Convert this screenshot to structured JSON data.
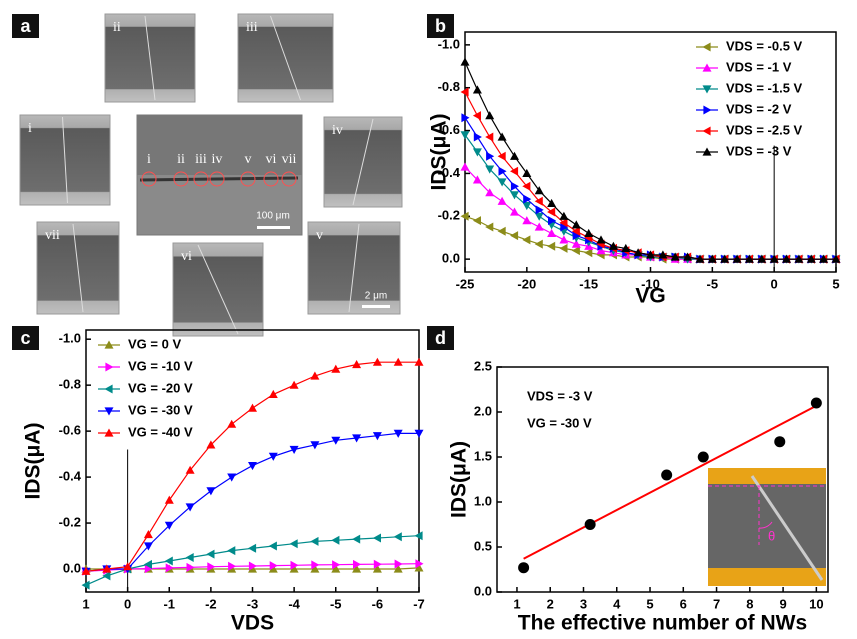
{
  "panel_a": {
    "label": "a",
    "images": [
      {
        "label": "ii"
      },
      {
        "label": "iii"
      },
      {
        "label": "i"
      },
      {
        "label": "iv"
      },
      {
        "label": "vii"
      },
      {
        "label": "vi"
      },
      {
        "label": "v"
      }
    ],
    "center_labels": [
      "i",
      "ii",
      "iii",
      "iv",
      "v",
      "vi",
      "vii"
    ],
    "center_scale": "100 μm",
    "image_scale": "2 μm"
  },
  "chart_data": [
    {
      "type": "line",
      "panel": "b",
      "xlabel": "VG",
      "ylabel": "IDS(μA)",
      "legend": "upper right",
      "x": [
        -25,
        -24,
        -23,
        -22,
        -21,
        -20,
        -19,
        -18,
        -17,
        -16,
        -15,
        -14,
        -13,
        -12,
        -11,
        -10,
        -9,
        -8,
        -7,
        -6,
        -5,
        -4,
        -3,
        -2,
        -1,
        0,
        1,
        2,
        3,
        4,
        5
      ],
      "xlim": [
        -25,
        5
      ],
      "xticks": [
        -25,
        -20,
        -15,
        -10,
        -5,
        0,
        5
      ],
      "ylim": [
        0.06,
        -1.06
      ],
      "yticks": [
        {
          "value": -1.0,
          "label": "-1.0"
        },
        -0.8,
        -0.6,
        -0.4,
        -0.2,
        {
          "value": 0,
          "label": "0.0"
        }
      ],
      "series": [
        {
          "name": "VDS = -0.5 V",
          "color": "#8c8c1a",
          "marker": "left",
          "values": [
            -0.2,
            -0.18,
            -0.15,
            -0.13,
            -0.11,
            -0.09,
            -0.07,
            -0.06,
            -0.05,
            -0.04,
            -0.03,
            -0.02,
            -0.02,
            -0.01,
            -0.01,
            -0.01,
            0,
            0,
            0,
            0,
            0,
            0,
            0,
            0,
            0,
            0,
            0,
            0,
            0,
            0,
            0
          ]
        },
        {
          "name": "VDS = -1 V",
          "color": "#ff00ff",
          "marker": "up",
          "values": [
            -0.43,
            -0.37,
            -0.31,
            -0.27,
            -0.22,
            -0.18,
            -0.15,
            -0.12,
            -0.09,
            -0.07,
            -0.06,
            -0.04,
            -0.03,
            -0.02,
            -0.02,
            -0.01,
            -0.01,
            0,
            0,
            0,
            0,
            0,
            0,
            0,
            0,
            0,
            0,
            0,
            0,
            0,
            0
          ]
        },
        {
          "name": "VDS = -1.5 V",
          "color": "#008b8b",
          "marker": "down",
          "values": [
            -0.58,
            -0.5,
            -0.42,
            -0.36,
            -0.3,
            -0.25,
            -0.2,
            -0.16,
            -0.13,
            -0.1,
            -0.08,
            -0.06,
            -0.04,
            -0.03,
            -0.02,
            -0.01,
            -0.01,
            -0.01,
            0,
            0,
            0,
            0,
            0,
            0,
            0,
            0,
            0,
            0,
            0,
            0,
            0
          ]
        },
        {
          "name": "VDS = -2 V",
          "color": "#0000ff",
          "marker": "right",
          "values": [
            -0.66,
            -0.57,
            -0.48,
            -0.41,
            -0.34,
            -0.28,
            -0.23,
            -0.18,
            -0.15,
            -0.11,
            -0.09,
            -0.06,
            -0.05,
            -0.03,
            -0.02,
            -0.02,
            -0.01,
            -0.01,
            -0.01,
            0,
            0,
            0,
            0,
            0,
            0,
            0,
            0,
            0,
            0,
            0,
            0
          ]
        },
        {
          "name": "VDS = -2.5 V",
          "color": "#ff0000",
          "marker": "left",
          "values": [
            -0.78,
            -0.67,
            -0.57,
            -0.48,
            -0.41,
            -0.34,
            -0.27,
            -0.22,
            -0.17,
            -0.13,
            -0.1,
            -0.07,
            -0.05,
            -0.04,
            -0.03,
            -0.02,
            -0.01,
            -0.01,
            -0.01,
            0,
            0,
            0,
            0,
            0,
            0,
            0,
            0,
            0,
            0,
            0,
            0
          ]
        },
        {
          "name": "VDS = -3 V",
          "color": "#000000",
          "marker": "up",
          "values": [
            -0.92,
            -0.79,
            -0.67,
            -0.57,
            -0.48,
            -0.4,
            -0.32,
            -0.26,
            -0.2,
            -0.16,
            -0.12,
            -0.09,
            -0.06,
            -0.05,
            -0.03,
            -0.02,
            -0.02,
            -0.01,
            -0.01,
            0,
            0,
            0,
            0,
            0,
            0,
            0,
            0,
            0,
            0,
            0,
            0
          ]
        }
      ]
    },
    {
      "type": "line",
      "panel": "c",
      "xlabel": "VDS",
      "ylabel": "IDS(μA)",
      "legend": "upper left",
      "x": [
        1,
        0.5,
        0,
        -0.5,
        -1,
        -1.5,
        -2,
        -2.5,
        -3,
        -3.5,
        -4,
        -4.5,
        -5,
        -5.5,
        -6,
        -6.5,
        -7
      ],
      "xlim": [
        1,
        -7
      ],
      "xticks": [
        1,
        0,
        -1,
        -2,
        -3,
        -4,
        -5,
        -6,
        -7
      ],
      "ylim": [
        0.1,
        -1.04
      ],
      "yticks": [
        {
          "value": -1.0,
          "label": "-1.0"
        },
        -0.8,
        -0.6,
        -0.4,
        -0.2,
        {
          "value": 0,
          "label": "0.0"
        }
      ],
      "series": [
        {
          "name": "VG = 0 V",
          "color": "#8c8c1a",
          "marker": "up",
          "values": [
            0,
            0,
            0,
            0,
            0,
            0,
            0,
            0,
            0,
            0,
            0,
            0,
            0,
            0,
            0,
            0,
            -0.005
          ]
        },
        {
          "name": "VG = -10 V",
          "color": "#ff00ff",
          "marker": "right",
          "values": [
            0.01,
            0.005,
            0,
            -0.002,
            -0.005,
            -0.007,
            -0.01,
            -0.012,
            -0.013,
            -0.015,
            -0.016,
            -0.018,
            -0.019,
            -0.02,
            -0.021,
            -0.022,
            -0.023
          ]
        },
        {
          "name": "VG = -20 V",
          "color": "#008b8b",
          "marker": "left",
          "values": [
            0.07,
            0.03,
            0,
            -0.02,
            -0.035,
            -0.05,
            -0.065,
            -0.08,
            -0.09,
            -0.1,
            -0.11,
            -0.12,
            -0.125,
            -0.13,
            -0.135,
            -0.14,
            -0.145
          ]
        },
        {
          "name": "VG = -30 V",
          "color": "#0000ff",
          "marker": "down",
          "values": [
            0.01,
            0,
            0,
            -0.1,
            -0.19,
            -0.27,
            -0.34,
            -0.4,
            -0.45,
            -0.49,
            -0.52,
            -0.54,
            -0.56,
            -0.57,
            -0.58,
            -0.59,
            -0.59
          ]
        },
        {
          "name": "VG = -40 V",
          "color": "#ff0000",
          "marker": "up",
          "values": [
            0.01,
            0,
            -0.01,
            -0.15,
            -0.3,
            -0.43,
            -0.54,
            -0.63,
            -0.7,
            -0.76,
            -0.8,
            -0.84,
            -0.87,
            -0.89,
            -0.9,
            -0.9,
            -0.9
          ]
        }
      ]
    },
    {
      "type": "scatter",
      "panel": "d",
      "xlabel": "The effective number of NWs",
      "ylabel": "IDS(μA)",
      "annotations": [
        "VDS  =   -3 V",
        "VG   =  -30 V"
      ],
      "inset_label": "θ",
      "x": [
        1.2,
        3.2,
        5.5,
        6.6,
        8.9,
        10
      ],
      "values": [
        0.27,
        0.75,
        1.3,
        1.5,
        1.67,
        2.1
      ],
      "color": "#000000",
      "fit": {
        "x": [
          1.2,
          10
        ],
        "values": [
          0.37,
          2.07
        ],
        "color": "#ff0000"
      },
      "xlim": [
        0.4,
        10.35
      ],
      "xticks": [
        1,
        2,
        3,
        4,
        5,
        6,
        7,
        8,
        9,
        10
      ],
      "ylim": [
        0,
        2.5
      ],
      "yticks": [
        {
          "value": 0,
          "label": "0.0"
        },
        0.5,
        {
          "value": 1,
          "label": "1.0"
        },
        1.5,
        {
          "value": 2,
          "label": "2.0"
        },
        2.5
      ]
    }
  ]
}
